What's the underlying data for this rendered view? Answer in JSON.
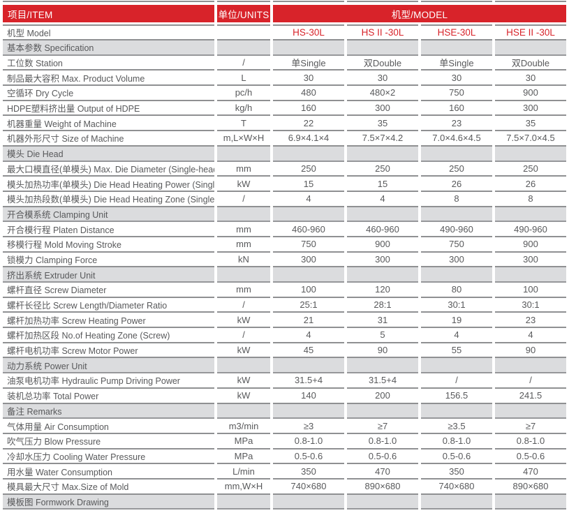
{
  "header": {
    "item": "项目/ITEM",
    "units": "单位/UNITS",
    "model": "机型/MODEL"
  },
  "model_row": {
    "label": "机型 Model",
    "models": [
      "HS-30L",
      "HS II -30L",
      "HSE-30L",
      "HSE II -30L"
    ]
  },
  "rows": [
    {
      "type": "section",
      "label": "基本参数 Specification"
    },
    {
      "type": "data",
      "label": "工位数 Station",
      "unit": "/",
      "values": [
        "单Single",
        "双Double",
        "单Single",
        "双Double"
      ]
    },
    {
      "type": "data",
      "label": "制品最大容积 Max. Product Volume",
      "unit": "L",
      "values": [
        "30",
        "30",
        "30",
        "30"
      ]
    },
    {
      "type": "data",
      "label": "空循环 Dry Cycle",
      "unit": "pc/h",
      "values": [
        "480",
        "480×2",
        "750",
        "900"
      ]
    },
    {
      "type": "data",
      "label": "HDPE塑料挤出量 Output of HDPE",
      "unit": "kg/h",
      "values": [
        "160",
        "300",
        "160",
        "300"
      ]
    },
    {
      "type": "data",
      "label": "机器重量 Weight of Machine",
      "unit": "T",
      "values": [
        "22",
        "35",
        "23",
        "35"
      ]
    },
    {
      "type": "data",
      "label": "机器外形尺寸 Size of Machine",
      "unit": "m,L×W×H",
      "values": [
        "6.9×4.1×4",
        "7.5×7×4.2",
        "7.0×4.6×4.5",
        "7.5×7.0×4.5"
      ]
    },
    {
      "type": "section",
      "label": "模头 Die Head"
    },
    {
      "type": "data",
      "label": "最大口模直径(单模头) Max. Die Diameter (Single-head)",
      "unit": "mm",
      "values": [
        "250",
        "250",
        "250",
        "250"
      ]
    },
    {
      "type": "data",
      "label": "模头加热功率(单模头) Die Head Heating Power (Single-head)",
      "unit": "kW",
      "values": [
        "15",
        "15",
        "26",
        "26"
      ]
    },
    {
      "type": "data",
      "label": "模头加热段数(单模头) Die Head Heating Zone (Single-head)",
      "unit": "/",
      "values": [
        "4",
        "4",
        "8",
        "8"
      ]
    },
    {
      "type": "section",
      "label": "开合模系统 Clamping Unit"
    },
    {
      "type": "data",
      "label": "开合模行程 Platen Distance",
      "unit": "mm",
      "values": [
        "460-960",
        "460-960",
        "490-960",
        "490-960"
      ]
    },
    {
      "type": "data",
      "label": "移模行程 Mold Moving Stroke",
      "unit": "mm",
      "values": [
        "750",
        "900",
        "750",
        "900"
      ]
    },
    {
      "type": "data",
      "label": "锁模力 Clamping Force",
      "unit": "kN",
      "values": [
        "300",
        "300",
        "300",
        "300"
      ]
    },
    {
      "type": "section",
      "label": "挤出系统 Extruder Unit"
    },
    {
      "type": "data",
      "label": "螺杆直径 Screw Diameter",
      "unit": "mm",
      "values": [
        "100",
        "120",
        "80",
        "100"
      ]
    },
    {
      "type": "data",
      "label": "螺杆长径比 Screw Length/Diameter Ratio",
      "unit": "/",
      "values": [
        "25:1",
        "28:1",
        "30:1",
        "30:1"
      ]
    },
    {
      "type": "data",
      "label": "螺杆加热功率 Screw Heating Power",
      "unit": "kW",
      "values": [
        "21",
        "31",
        "19",
        "23"
      ]
    },
    {
      "type": "data",
      "label": "螺杆加热区段 No.of Heating Zone (Screw)",
      "unit": "/",
      "values": [
        "4",
        "5",
        "4",
        "4"
      ]
    },
    {
      "type": "data",
      "label": "螺杆电机功率 Screw Motor Power",
      "unit": "kW",
      "values": [
        "45",
        "90",
        "55",
        "90"
      ]
    },
    {
      "type": "section",
      "label": "动力系统 Power Unit"
    },
    {
      "type": "data",
      "label": "油泵电机功率 Hydraulic Pump Driving Power",
      "unit": "kW",
      "values": [
        "31.5+4",
        "31.5+4",
        "/",
        "/"
      ]
    },
    {
      "type": "data",
      "label": "装机总功率 Total Power",
      "unit": "kW",
      "values": [
        "140",
        "200",
        "156.5",
        "241.5"
      ]
    },
    {
      "type": "section",
      "label": "备注 Remarks"
    },
    {
      "type": "data",
      "label": "气体用量 Air Consumption",
      "unit": "m3/min",
      "values": [
        "≥3",
        "≥7",
        "≥3.5",
        "≥7"
      ]
    },
    {
      "type": "data",
      "label": "吹气压力 Blow Pressure",
      "unit": "MPa",
      "values": [
        "0.8-1.0",
        "0.8-1.0",
        "0.8-1.0",
        "0.8-1.0"
      ]
    },
    {
      "type": "data",
      "label": "冷却水压力 Cooling Water Pressure",
      "unit": "MPa",
      "values": [
        "0.5-0.6",
        "0.5-0.6",
        "0.5-0.6",
        "0.5-0.6"
      ]
    },
    {
      "type": "data",
      "label": "用水量 Water Consumption",
      "unit": "L/min",
      "values": [
        "350",
        "470",
        "350",
        "470"
      ]
    },
    {
      "type": "data",
      "label": "模具最大尺寸 Max.Size of Mold",
      "unit": "mm,W×H",
      "values": [
        "740×680",
        "890×680",
        "740×680",
        "890×680"
      ]
    },
    {
      "type": "section",
      "label": "模板图 Formwork Drawing"
    }
  ],
  "colors": {
    "accent_red": "#D8232A",
    "section_bg": "#DBDCDE",
    "rule_gray": "#8F9092",
    "text_gray": "#58595B",
    "header_text": "#FFFFFF"
  }
}
